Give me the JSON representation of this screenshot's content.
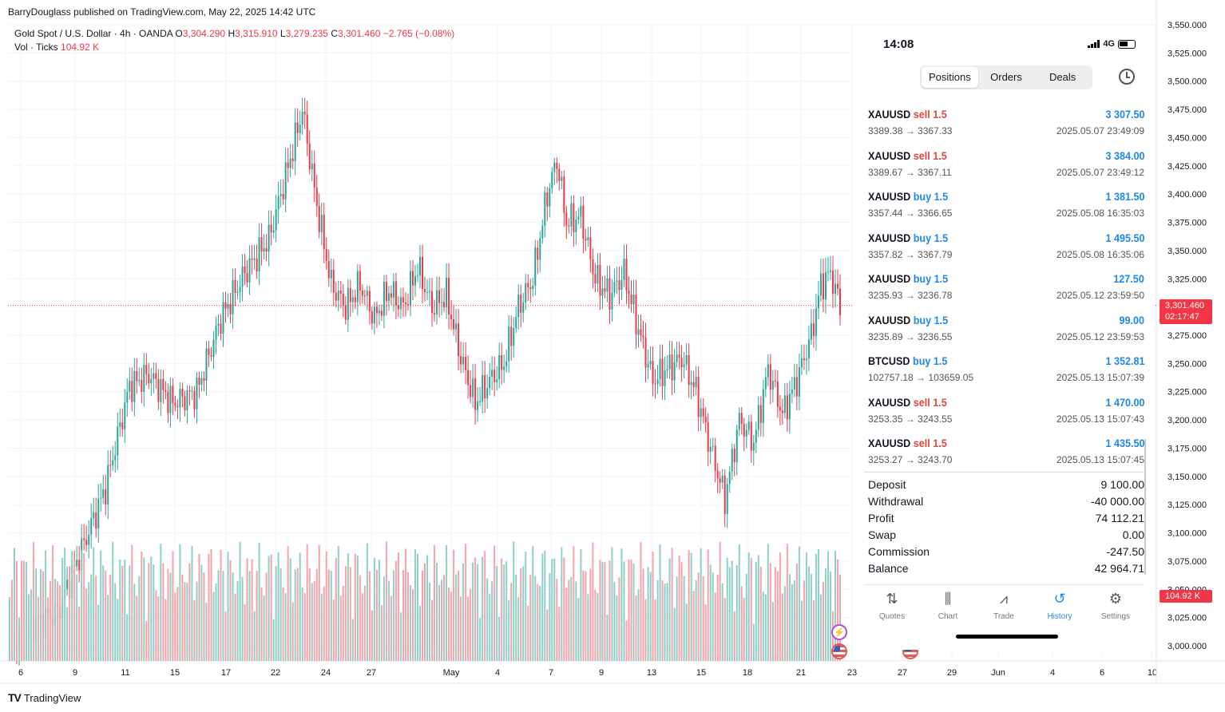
{
  "header": {
    "published": "BarryDouglass published on TradingView.com, May 22, 2025 14:42 UTC",
    "symbol": "Gold Spot / U.S. Dollar · 4h · OANDA",
    "o_label": "O",
    "o_value": "3,304.290",
    "h_label": "H",
    "h_value": "3,315.910",
    "l_label": "L",
    "l_value": "3,279.235",
    "c_label": "C",
    "c_value": "3,301.460 −2.765 (−0.08%)",
    "vol_label": "Vol · Ticks",
    "vol_value": "104.92 K"
  },
  "colors": {
    "up": "#26a69a",
    "down": "#f23645",
    "vol_up": "#8fcfc7",
    "vol_down": "#f5a3a8",
    "accent": "#1e88e5",
    "sell": "#e0473d"
  },
  "price_tag": {
    "price": "3,301.460",
    "countdown": "02:17:47"
  },
  "vol_tag": "104.92 K",
  "chart_data": {
    "type": "candlestick",
    "timeframe": "4h",
    "ylim": [
      2990,
      3550
    ],
    "y_ticks": [
      "3,550.000",
      "3,525.000",
      "3,500.000",
      "3,475.000",
      "3,450.000",
      "3,425.000",
      "3,400.000",
      "3,375.000",
      "3,350.000",
      "3,325.000",
      "3,300.000",
      "3,275.000",
      "3,250.000",
      "3,225.000",
      "3,200.000",
      "3,175.000",
      "3,150.000",
      "3,125.000",
      "3,100.000",
      "3,075.000",
      "3,050.000",
      "3,025.000",
      "3,000.000"
    ],
    "x_ticks": [
      "6",
      "9",
      "11",
      "15",
      "17",
      "22",
      "24",
      "27",
      "May",
      "4",
      "7",
      "9",
      "13",
      "15",
      "18",
      "21",
      "23",
      "27",
      "29",
      "Jun",
      "4",
      "6",
      "10"
    ],
    "anchors": [
      [
        0,
        3005
      ],
      [
        20,
        3030
      ],
      [
        40,
        3140
      ],
      [
        50,
        3230
      ],
      [
        58,
        3240
      ],
      [
        68,
        3215
      ],
      [
        78,
        3225
      ],
      [
        88,
        3290
      ],
      [
        98,
        3330
      ],
      [
        108,
        3360
      ],
      [
        118,
        3440
      ],
      [
        122,
        3475
      ],
      [
        128,
        3390
      ],
      [
        134,
        3320
      ],
      [
        140,
        3300
      ],
      [
        146,
        3320
      ],
      [
        152,
        3290
      ],
      [
        158,
        3315
      ],
      [
        164,
        3300
      ],
      [
        170,
        3335
      ],
      [
        176,
        3300
      ],
      [
        182,
        3310
      ],
      [
        188,
        3255
      ],
      [
        194,
        3215
      ],
      [
        200,
        3235
      ],
      [
        206,
        3250
      ],
      [
        212,
        3300
      ],
      [
        218,
        3325
      ],
      [
        224,
        3400
      ],
      [
        228,
        3430
      ],
      [
        232,
        3375
      ],
      [
        238,
        3380
      ],
      [
        244,
        3325
      ],
      [
        250,
        3310
      ],
      [
        256,
        3330
      ],
      [
        262,
        3280
      ],
      [
        268,
        3235
      ],
      [
        274,
        3245
      ],
      [
        280,
        3255
      ],
      [
        286,
        3225
      ],
      [
        292,
        3175
      ],
      [
        298,
        3130
      ],
      [
        304,
        3200
      ],
      [
        310,
        3180
      ],
      [
        316,
        3245
      ],
      [
        322,
        3205
      ],
      [
        328,
        3235
      ],
      [
        334,
        3275
      ],
      [
        338,
        3320
      ],
      [
        342,
        3330
      ],
      [
        346,
        3301
      ]
    ]
  },
  "phone": {
    "time": "14:08",
    "network": "4G",
    "tabs": [
      "Positions",
      "Orders",
      "Deals"
    ],
    "deals": [
      {
        "symbol": "XAUUSD",
        "side": "sell",
        "volume": "1.5",
        "prices": "3389.38 → 3367.33",
        "profit": "3 307.50",
        "time": "2025.05.07 23:49:09"
      },
      {
        "symbol": "XAUUSD",
        "side": "sell",
        "volume": "1.5",
        "prices": "3389.67 → 3367.11",
        "profit": "3 384.00",
        "time": "2025.05.07 23:49:12"
      },
      {
        "symbol": "XAUUSD",
        "side": "buy",
        "volume": "1.5",
        "prices": "3357.44 → 3366.65",
        "profit": "1 381.50",
        "time": "2025.05.08 16:35:03"
      },
      {
        "symbol": "XAUUSD",
        "side": "buy",
        "volume": "1.5",
        "prices": "3357.82 → 3367.79",
        "profit": "1 495.50",
        "time": "2025.05.08 16:35:06"
      },
      {
        "symbol": "XAUUSD",
        "side": "buy",
        "volume": "1.5",
        "prices": "3235.93 → 3236.78",
        "profit": "127.50",
        "time": "2025.05.12 23:59:50"
      },
      {
        "symbol": "XAUUSD",
        "side": "buy",
        "volume": "1.5",
        "prices": "3235.89 → 3236.55",
        "profit": "99.00",
        "time": "2025.05.12 23:59:53"
      },
      {
        "symbol": "BTCUSD",
        "side": "buy",
        "volume": "1.5",
        "prices": "102757.18 → 103659.05",
        "profit": "1 352.81",
        "time": "2025.05.13 15:07:39"
      },
      {
        "symbol": "XAUUSD",
        "side": "sell",
        "volume": "1.5",
        "prices": "3253.35 → 3243.55",
        "profit": "1 470.00",
        "time": "2025.05.13 15:07:43"
      },
      {
        "symbol": "XAUUSD",
        "side": "sell",
        "volume": "1.5",
        "prices": "3253.27 → 3243.70",
        "profit": "1 435.50",
        "time": "2025.05.13 15:07:45"
      }
    ],
    "summary": [
      {
        "label": "Deposit",
        "value": "9 100.00"
      },
      {
        "label": "Withdrawal",
        "value": "-40 000.00"
      },
      {
        "label": "Profit",
        "value": "74 112.21"
      },
      {
        "label": "Swap",
        "value": "0.00"
      },
      {
        "label": "Commission",
        "value": "-247.50"
      },
      {
        "label": "Balance",
        "value": "42 964.71"
      }
    ],
    "nav": [
      {
        "label": "Quotes",
        "icon": "quotes-icon",
        "glyph": "⇅"
      },
      {
        "label": "Chart",
        "icon": "candles-icon",
        "glyph": "⫼"
      },
      {
        "label": "Trade",
        "icon": "trade-chart-icon",
        "glyph": "⩘"
      },
      {
        "label": "History",
        "icon": "history-icon",
        "glyph": "↺"
      },
      {
        "label": "Settings",
        "icon": "settings-gear-icon",
        "glyph": "⚙"
      }
    ],
    "active_nav": "History"
  },
  "footer": {
    "brand": "TradingView",
    "logo": "TV"
  }
}
